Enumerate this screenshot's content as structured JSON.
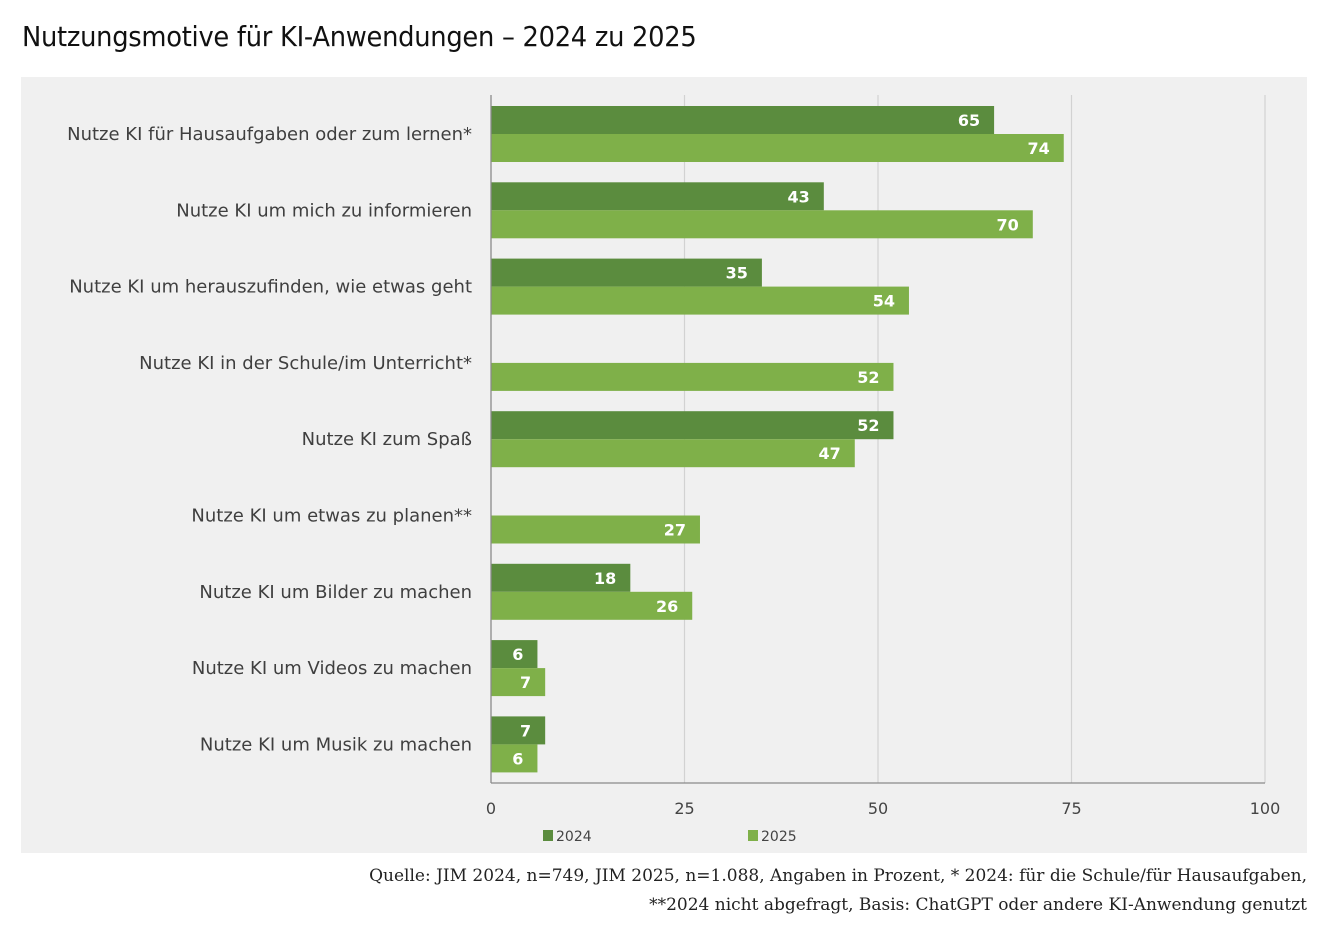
{
  "title": "Nutzungsmotive für KI-Anwendungen – 2024 zu 2025",
  "footnote": {
    "line1": "Quelle: JIM 2024, n=749, JIM 2025, n=1.088, Angaben in Prozent, * 2024: für die Schule/für Hausaufgaben,",
    "line2": "**2024 nicht abgefragt, Basis: ChatGPT oder andere KI-Anwendung genutzt"
  },
  "chart_data": {
    "type": "bar",
    "orientation": "horizontal",
    "title": "Nutzungsmotive für KI-Anwendungen – 2024 zu 2025",
    "xlabel": "",
    "ylabel": "",
    "xlim": [
      0,
      100
    ],
    "xticks": [
      0,
      25,
      50,
      75,
      100
    ],
    "grid": true,
    "legend_position": "bottom",
    "categories": [
      "Nutze KI für Hausaufgaben oder zum lernen*",
      "Nutze KI um mich zu informieren",
      "Nutze KI um herauszufinden, wie etwas geht",
      "Nutze KI in der Schule/im Unterricht*",
      "Nutze KI zum Spaß",
      "Nutze KI um etwas zu planen**",
      "Nutze KI um Bilder zu machen",
      "Nutze KI um Videos zu machen",
      "Nutze KI um Musik zu machen"
    ],
    "series": [
      {
        "name": "2024",
        "color": "#5b8c3e",
        "values": [
          65,
          43,
          35,
          null,
          52,
          null,
          18,
          6,
          7
        ]
      },
      {
        "name": "2025",
        "color": "#7fb049",
        "values": [
          74,
          70,
          54,
          52,
          47,
          27,
          26,
          7,
          6
        ]
      }
    ],
    "gridline_color": "#d2d2d2",
    "axis_color": "#8a8a8a"
  }
}
